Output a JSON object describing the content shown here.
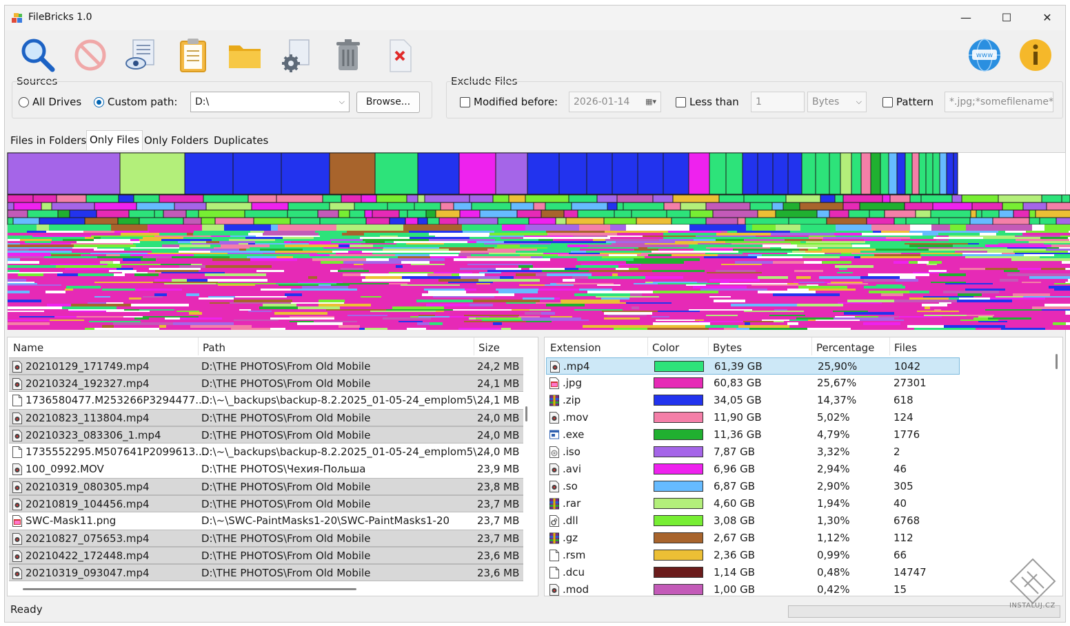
{
  "window": {
    "title": "FileBricks 1.0"
  },
  "title_controls": {
    "minimize": "—",
    "maximize": "☐",
    "close": "✕"
  },
  "toolbar": [
    {
      "name": "scan-button",
      "icon": "magnifier-icon"
    },
    {
      "name": "stop-button",
      "icon": "stop-icon"
    },
    {
      "name": "view-button",
      "icon": "view-document-icon"
    },
    {
      "name": "clipboard-button",
      "icon": "clipboard-icon"
    },
    {
      "name": "open-folder-button",
      "icon": "folder-icon"
    },
    {
      "name": "settings-button",
      "icon": "gear-document-icon"
    },
    {
      "name": "delete-button",
      "icon": "trash-icon"
    },
    {
      "name": "remove-button",
      "icon": "delete-file-icon"
    },
    {
      "name": "website-button",
      "icon": "globe-www-icon"
    },
    {
      "name": "about-button",
      "icon": "info-icon"
    }
  ],
  "sources": {
    "label": "Sources",
    "all_drives": "All Drives",
    "custom_path": "Custom path:",
    "path_value": "D:\\",
    "browse": "Browse..."
  },
  "exclude": {
    "label": "Exclude Files",
    "modified_before": "Modified before:",
    "date_value": "2026-01-14",
    "less_than": "Less than",
    "size_value": "1",
    "unit_value": "Bytes",
    "pattern": "Pattern",
    "pattern_value": "*.jpg;*somefilename*"
  },
  "tabs": [
    "Files in Folders",
    "Only Files",
    "Only Folders",
    "Duplicates"
  ],
  "active_tab": "Only Files",
  "files_table": {
    "columns": [
      "Name",
      "Path",
      "Size"
    ],
    "rows": [
      {
        "name": "20210129_171749.mp4",
        "path": "D:\\THE PHOTOS\\From Old Mobile",
        "size": "24,2 MB",
        "icon": "video-file-icon",
        "shaded": true
      },
      {
        "name": "20210324_192327.mp4",
        "path": "D:\\THE PHOTOS\\From Old Mobile",
        "size": "24,1 MB",
        "icon": "video-file-icon",
        "shaded": true
      },
      {
        "name": "1736580477.M253266P3294477....",
        "path": "D:\\~\\_backups\\backup-8.2.2025_01-05-24_emplom5\\...",
        "size": "24,1 MB",
        "icon": "blank-file-icon",
        "shaded": false
      },
      {
        "name": "20210823_113804.mp4",
        "path": "D:\\THE PHOTOS\\From Old Mobile",
        "size": "24,0 MB",
        "icon": "video-file-icon",
        "shaded": true
      },
      {
        "name": "20210323_083306_1.mp4",
        "path": "D:\\THE PHOTOS\\From Old Mobile",
        "size": "24,0 MB",
        "icon": "video-file-icon",
        "shaded": true
      },
      {
        "name": "1735552295.M507641P2099613....",
        "path": "D:\\~\\_backups\\backup-8.2.2025_01-05-24_emplom5\\...",
        "size": "24,0 MB",
        "icon": "blank-file-icon",
        "shaded": false
      },
      {
        "name": "100_0992.MOV",
        "path": "D:\\THE PHOTOS\\Чехия-Польша",
        "size": "23,9 MB",
        "icon": "video-file-icon",
        "shaded": false
      },
      {
        "name": "20210319_080305.mp4",
        "path": "D:\\THE PHOTOS\\From Old Mobile",
        "size": "23,8 MB",
        "icon": "video-file-icon",
        "shaded": true
      },
      {
        "name": "20210819_104456.mp4",
        "path": "D:\\THE PHOTOS\\From Old Mobile",
        "size": "23,7 MB",
        "icon": "video-file-icon",
        "shaded": true
      },
      {
        "name": "SWC-Mask11.png",
        "path": "D:\\~\\SWC-PaintMasks1-20\\SWC-PaintMasks1-20",
        "size": "23,7 MB",
        "icon": "image-file-icon",
        "shaded": false
      },
      {
        "name": "20210827_075653.mp4",
        "path": "D:\\THE PHOTOS\\From Old Mobile",
        "size": "23,7 MB",
        "icon": "video-file-icon",
        "shaded": true
      },
      {
        "name": "20210422_172448.mp4",
        "path": "D:\\THE PHOTOS\\From Old Mobile",
        "size": "23,6 MB",
        "icon": "video-file-icon",
        "shaded": true
      },
      {
        "name": "20210319_093047.mp4",
        "path": "D:\\THE PHOTOS\\From Old Mobile",
        "size": "23,6 MB",
        "icon": "video-file-icon",
        "shaded": true
      }
    ]
  },
  "ext_table": {
    "columns": [
      "Extension",
      "Color",
      "Bytes",
      "Percentage",
      "Files"
    ],
    "rows": [
      {
        "ext": ".mp4",
        "color": "#2de37a",
        "bytes": "61,39 GB",
        "pct": "25,90%",
        "files": "1042",
        "icon": "video-file-icon",
        "selected": true
      },
      {
        "ext": ".jpg",
        "color": "#e62ab6",
        "bytes": "60,83 GB",
        "pct": "25,67%",
        "files": "27301",
        "icon": "image-file-icon",
        "selected": false
      },
      {
        "ext": ".zip",
        "color": "#2233ee",
        "bytes": "34,05 GB",
        "pct": "14,37%",
        "files": "618",
        "icon": "archive-icon",
        "selected": false
      },
      {
        "ext": ".mov",
        "color": "#f47fa8",
        "bytes": "11,90 GB",
        "pct": "5,02%",
        "files": "124",
        "icon": "video-file-icon",
        "selected": false
      },
      {
        "ext": ".exe",
        "color": "#20b030",
        "bytes": "11,36 GB",
        "pct": "4,79%",
        "files": "1776",
        "icon": "exe-icon",
        "selected": false
      },
      {
        "ext": ".iso",
        "color": "#a565e8",
        "bytes": "7,87 GB",
        "pct": "3,32%",
        "files": "2",
        "icon": "disc-file-icon",
        "selected": false
      },
      {
        "ext": ".avi",
        "color": "#ee22ee",
        "bytes": "6,96 GB",
        "pct": "2,94%",
        "files": "46",
        "icon": "video-file-icon",
        "selected": false
      },
      {
        "ext": ".so",
        "color": "#66bbff",
        "bytes": "6,87 GB",
        "pct": "2,90%",
        "files": "305",
        "icon": "video-file-icon",
        "selected": false
      },
      {
        "ext": ".rar",
        "color": "#b3ef7a",
        "bytes": "4,60 GB",
        "pct": "1,94%",
        "files": "40",
        "icon": "archive-icon",
        "selected": false
      },
      {
        "ext": ".dll",
        "color": "#77ee33",
        "bytes": "3,08 GB",
        "pct": "1,30%",
        "files": "6768",
        "icon": "gear-file-icon",
        "selected": false
      },
      {
        "ext": ".gz",
        "color": "#a8642c",
        "bytes": "2,67 GB",
        "pct": "1,12%",
        "files": "112",
        "icon": "archive-icon",
        "selected": false
      },
      {
        "ext": ".rsm",
        "color": "#ecbf35",
        "bytes": "2,36 GB",
        "pct": "0,99%",
        "files": "66",
        "icon": "blank-file-icon",
        "selected": false
      },
      {
        "ext": ".dcu",
        "color": "#6b1c1c",
        "bytes": "1,14 GB",
        "pct": "0,48%",
        "files": "14747",
        "icon": "blank-file-icon",
        "selected": false
      },
      {
        "ext": ".mod",
        "color": "#c35ab8",
        "bytes": "1,00 GB",
        "pct": "0,42%",
        "files": "15",
        "icon": "video-file-icon",
        "selected": false
      }
    ]
  },
  "treemap": {
    "top_row_colors": [
      "#a565e8",
      "#b3ef7a",
      "#2233ee",
      "#2233ee",
      "#2233ee",
      "#a8642c",
      "#2de37a",
      "#2233ee",
      "#ee22ee",
      "#a565e8",
      "#2233ee",
      "#2233ee",
      "#2233ee",
      "#2233ee",
      "#2233ee",
      "#2233ee",
      "#ee22ee",
      "#2de37a",
      "#2de37a",
      "#2233ee",
      "#2233ee",
      "#2233ee",
      "#2233ee",
      "#2de37a",
      "#2de37a",
      "#2de37a",
      "#b3ef7a",
      "#2de37a",
      "#f47fa8",
      "#20b030",
      "#2de37a",
      "#66bbff",
      "#2233ee",
      "#2de37a",
      "#f47fa8",
      "#2de37a",
      "#2de37a",
      "#2de37a",
      "#66bbff",
      "#2233ee",
      "#2233ee"
    ],
    "palette": [
      "#2de37a",
      "#e62ab6",
      "#2233ee",
      "#f47fa8",
      "#20b030",
      "#a565e8",
      "#ee22ee",
      "#66bbff",
      "#b3ef7a",
      "#77ee33",
      "#a8642c",
      "#ecbf35",
      "#c35ab8"
    ]
  },
  "status": {
    "text": "Ready"
  },
  "watermark": "INSTALUJ.CZ"
}
